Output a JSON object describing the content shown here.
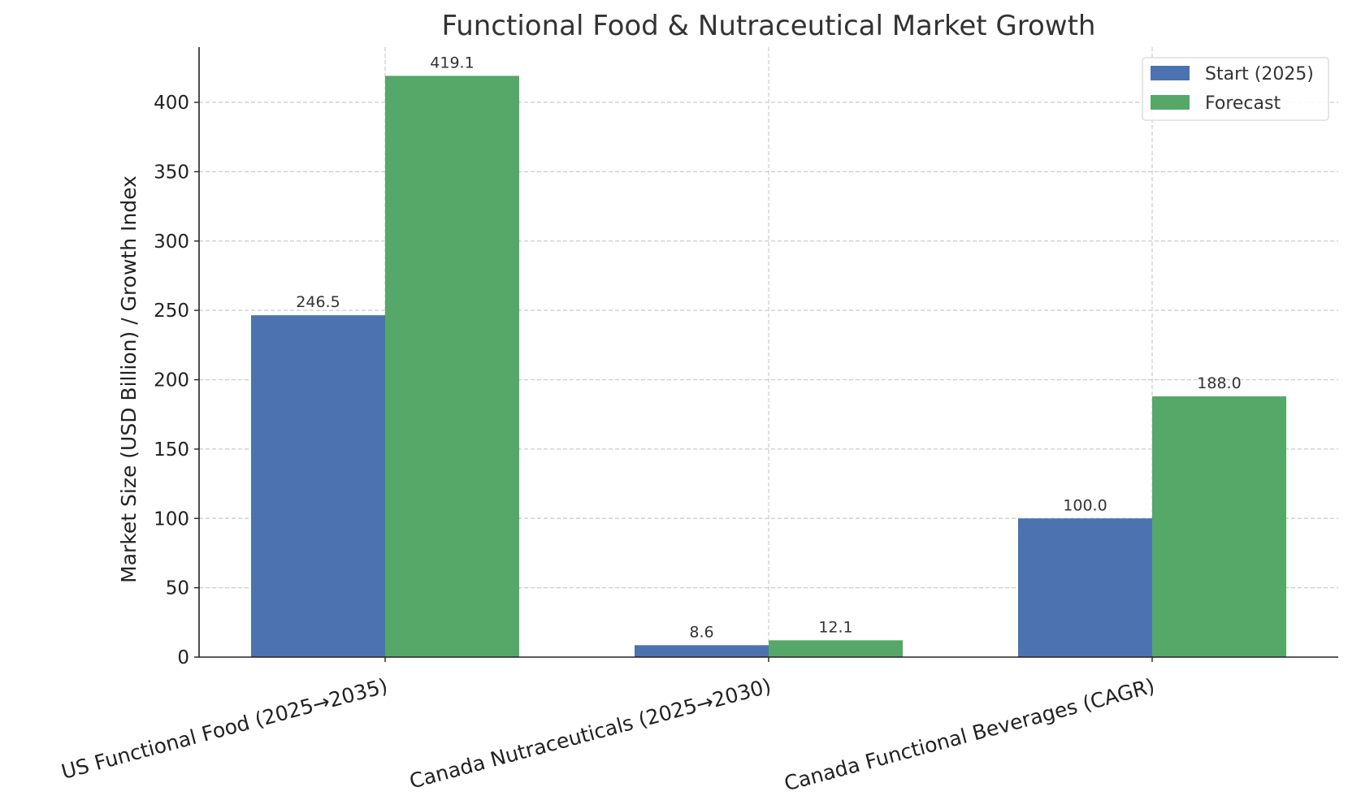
{
  "chart_data": {
    "type": "bar",
    "title": "Functional Food & Nutraceutical Market Growth",
    "xlabel": "",
    "ylabel": "Market Size (USD Billion) / Growth Index",
    "ylim": [
      0,
      440
    ],
    "yticks": [
      0,
      50,
      100,
      150,
      200,
      250,
      300,
      350,
      400
    ],
    "grid": true,
    "legend_position": "top-right",
    "categories": [
      "US Functional Food (2025→2035)",
      "Canada Nutraceuticals (2025→2030)",
      "Canada Functional Beverages (CAGR)"
    ],
    "series": [
      {
        "name": "Start (2025)",
        "color": "#4c72b0",
        "values": [
          246.5,
          8.6,
          100.0
        ],
        "labels": [
          "246.5",
          "8.6",
          "100.0"
        ]
      },
      {
        "name": "Forecast",
        "color": "#55a868",
        "values": [
          419.1,
          12.1,
          188.0
        ],
        "labels": [
          "419.1",
          "12.1",
          "188.0"
        ]
      }
    ]
  }
}
